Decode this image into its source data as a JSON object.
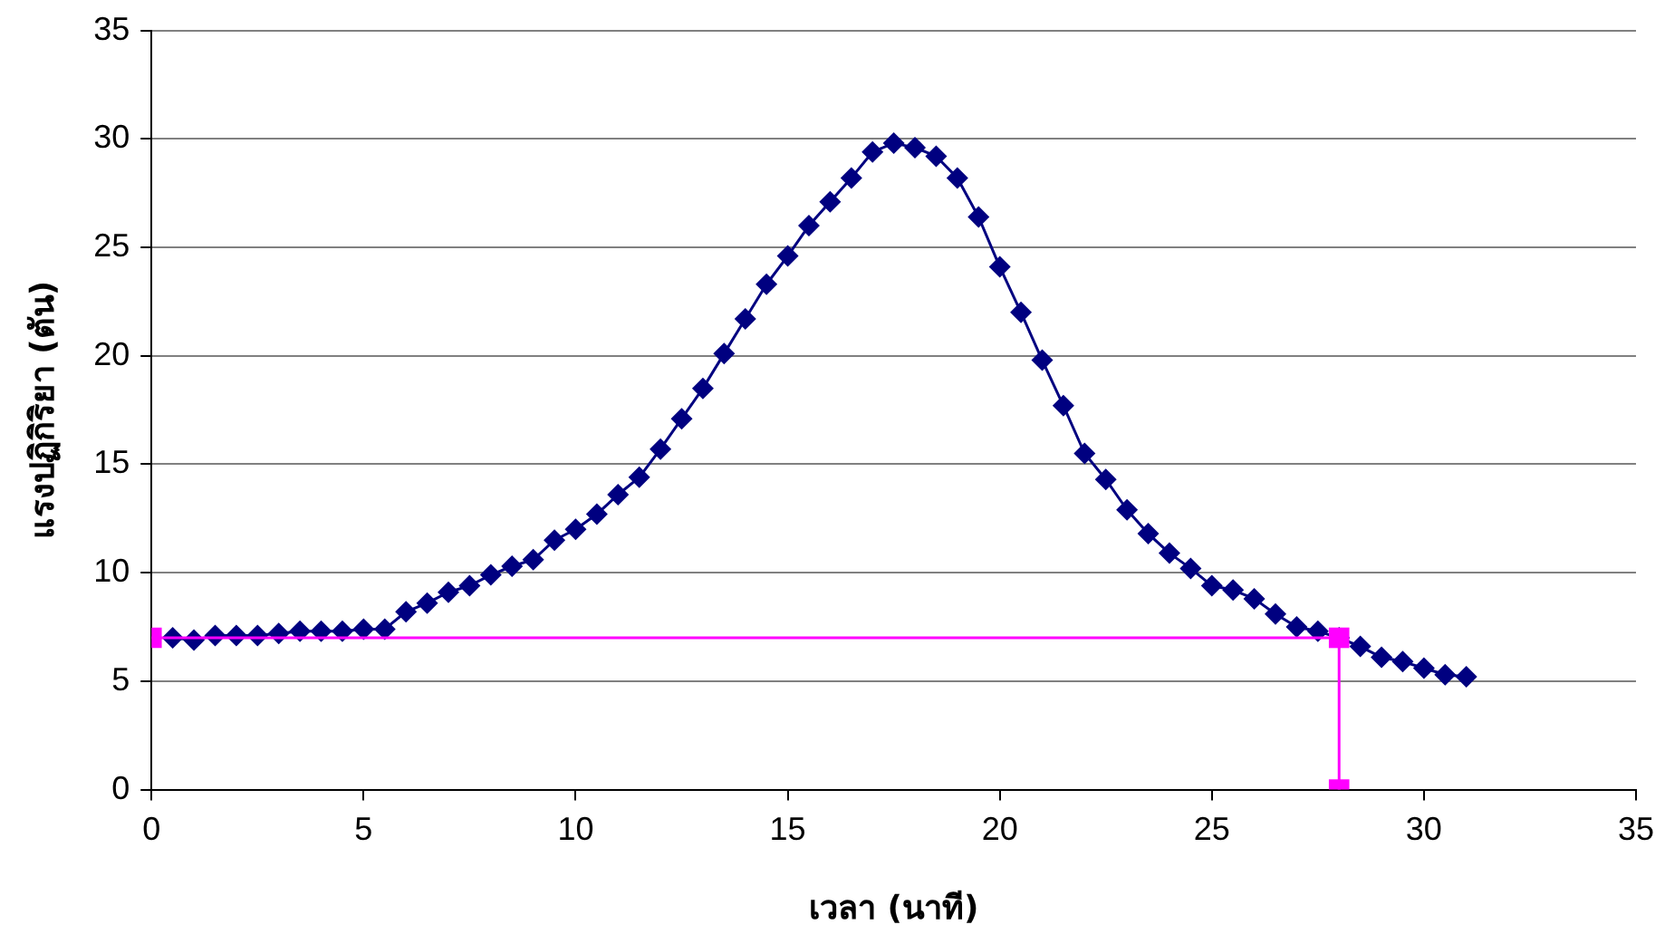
{
  "chart_data": {
    "type": "line",
    "xlabel": "เวลา (นาที)",
    "ylabel": "แรงปฏิกิริยา (ตัน)",
    "xlim": [
      0,
      35
    ],
    "xticks": [
      0,
      5,
      10,
      15,
      20,
      25,
      30,
      35
    ],
    "ylim": [
      0,
      35
    ],
    "yticks": [
      0,
      5,
      10,
      15,
      20,
      25,
      30,
      35
    ],
    "grid": "y",
    "legend": false,
    "line_style": "solid",
    "series": [
      {
        "color": "#000080",
        "marker": "diamond",
        "x": [
          0.5,
          1,
          1.5,
          2,
          2.5,
          3,
          3.5,
          4,
          4.5,
          5,
          5.5,
          6,
          6.5,
          7,
          7.5,
          8,
          8.5,
          9,
          9.5,
          10,
          10.5,
          11,
          11.5,
          12,
          12.5,
          13,
          13.5,
          14,
          14.5,
          15,
          15.5,
          16,
          16.5,
          17,
          17.5,
          18,
          18.5,
          19,
          19.5,
          20,
          20.5,
          21,
          21.5,
          22,
          22.5,
          23,
          23.5,
          24,
          24.5,
          25,
          25.5,
          26,
          26.5,
          27,
          27.5,
          28,
          28.5,
          29,
          29.5,
          30,
          30.5,
          31
        ],
        "values": [
          7.0,
          6.9,
          7.1,
          7.1,
          7.1,
          7.2,
          7.3,
          7.3,
          7.3,
          7.4,
          7.4,
          8.2,
          8.6,
          9.1,
          9.4,
          9.9,
          10.3,
          10.6,
          11.5,
          12.0,
          12.7,
          13.6,
          14.4,
          15.7,
          17.1,
          18.5,
          20.1,
          21.7,
          23.3,
          24.6,
          26.0,
          27.1,
          28.2,
          29.4,
          29.8,
          29.6,
          29.2,
          28.2,
          26.4,
          24.1,
          22.0,
          19.8,
          17.7,
          15.5,
          14.3,
          12.9,
          11.8,
          10.9,
          10.2,
          9.4,
          9.2,
          8.8,
          8.1,
          7.5,
          7.3,
          7.0,
          6.6,
          6.1,
          5.9,
          5.6,
          5.3,
          5.2
        ]
      },
      {
        "color": "#ff00ff",
        "marker": "square",
        "x": [
          0,
          28,
          28
        ],
        "values": [
          7,
          7,
          0
        ]
      }
    ]
  }
}
